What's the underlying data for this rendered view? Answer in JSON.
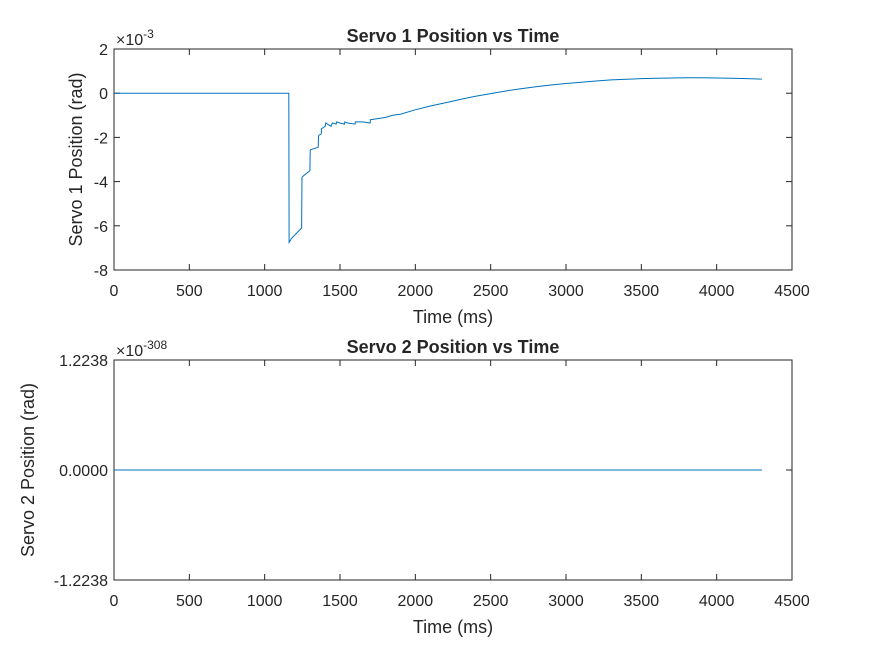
{
  "chart_data": [
    {
      "type": "line",
      "title": "Servo 1 Position vs Time",
      "xlabel": "Time (ms)",
      "ylabel": "Servo 1 Position (rad)",
      "xlim": [
        0,
        4500
      ],
      "ylim": [
        -8,
        2
      ],
      "y_exponent_base": "×10",
      "y_exponent_power": "-3",
      "x_ticks": [
        "0",
        "500",
        "1000",
        "1500",
        "2000",
        "2500",
        "3000",
        "3500",
        "4000",
        "4500"
      ],
      "y_ticks": [
        "-8",
        "-6",
        "-4",
        "-2",
        "0",
        "2"
      ],
      "grid": false,
      "color": "#0072BD",
      "series": [
        {
          "x": [
            0,
            1160,
            1162,
            1180,
            1245,
            1248,
            1255,
            1300,
            1302,
            1305,
            1355,
            1357,
            1360,
            1375,
            1378,
            1390,
            1402,
            1405,
            1440,
            1442,
            1450,
            1475,
            1477,
            1500,
            1530,
            1532,
            1550,
            1600,
            1602,
            1650,
            1700,
            1702,
            1750,
            1800,
            1850,
            1900,
            2000,
            2100,
            2200,
            2300,
            2400,
            2500,
            2600,
            2700,
            2800,
            2900,
            3000,
            3100,
            3200,
            3300,
            3400,
            3500,
            3600,
            3700,
            3800,
            3900,
            4000,
            4100,
            4200,
            4300
          ],
          "y": [
            0,
            0,
            -6.75,
            -6.55,
            -6.1,
            -3.8,
            -3.75,
            -3.5,
            -2.6,
            -2.55,
            -2.45,
            -1.95,
            -1.9,
            -1.85,
            -1.6,
            -1.55,
            -1.5,
            -1.35,
            -1.5,
            -1.45,
            -1.35,
            -1.4,
            -1.3,
            -1.35,
            -1.4,
            -1.3,
            -1.35,
            -1.4,
            -1.3,
            -1.3,
            -1.35,
            -1.2,
            -1.15,
            -1.1,
            -1.0,
            -0.95,
            -0.75,
            -0.58,
            -0.43,
            -0.28,
            -0.14,
            -0.02,
            0.1,
            0.2,
            0.29,
            0.37,
            0.44,
            0.5,
            0.55,
            0.6,
            0.63,
            0.66,
            0.68,
            0.69,
            0.7,
            0.7,
            0.69,
            0.68,
            0.66,
            0.64
          ]
        }
      ]
    },
    {
      "type": "line",
      "title": "Servo 2 Position vs Time",
      "xlabel": "Time (ms)",
      "ylabel": "Servo 2 Position (rad)",
      "xlim": [
        0,
        4500
      ],
      "ylim": [
        -1.2238,
        1.2238
      ],
      "y_exponent_base": "×10",
      "y_exponent_power": "-308",
      "x_ticks": [
        "0",
        "500",
        "1000",
        "1500",
        "2000",
        "2500",
        "3000",
        "3500",
        "4000",
        "4500"
      ],
      "y_ticks": [
        "-1.2238",
        "0.0000",
        "1.2238"
      ],
      "grid": false,
      "color": "#0072BD",
      "series": [
        {
          "x": [
            0,
            4300
          ],
          "y": [
            0,
            0
          ]
        }
      ]
    }
  ]
}
